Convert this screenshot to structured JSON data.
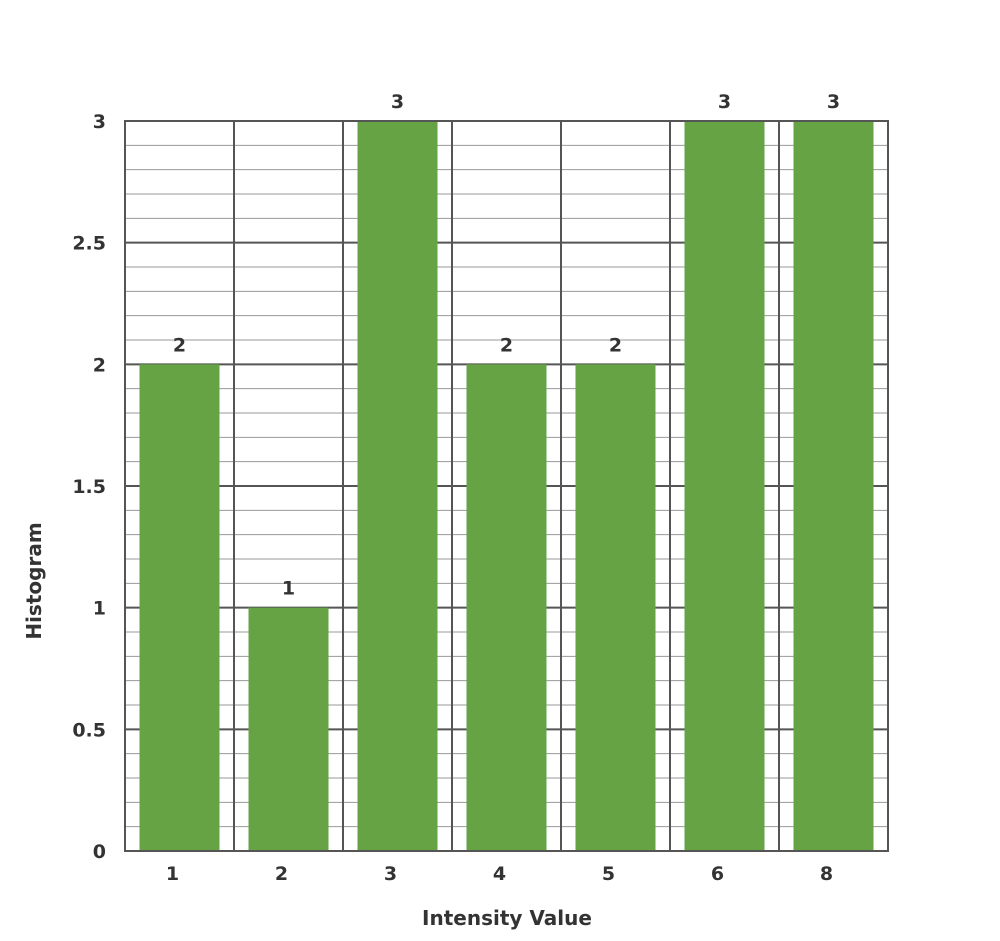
{
  "chart_data": {
    "type": "bar",
    "categories": [
      "1",
      "2",
      "3",
      "4",
      "5",
      "6",
      "8"
    ],
    "values": [
      2,
      1,
      3,
      2,
      2,
      3,
      3
    ],
    "data_labels": [
      "2",
      "1",
      "3",
      "2",
      "2",
      "3",
      "3"
    ],
    "title": "",
    "xlabel": "Intensity Value",
    "ylabel": "Histogram",
    "ylim": [
      0,
      3
    ],
    "yticks": [
      0,
      0.5,
      1,
      1.5,
      2,
      2.5,
      3
    ],
    "ytick_labels": [
      "0",
      "0.5",
      "1",
      "1.5",
      "2",
      "2.5",
      "3"
    ],
    "grid": true,
    "minor_grid_step": 0.1,
    "legend": "none",
    "colors": {
      "bar": "#66a344",
      "grid_major": "#555555",
      "grid_minor": "#9a9a9a",
      "text": "#333333"
    }
  }
}
